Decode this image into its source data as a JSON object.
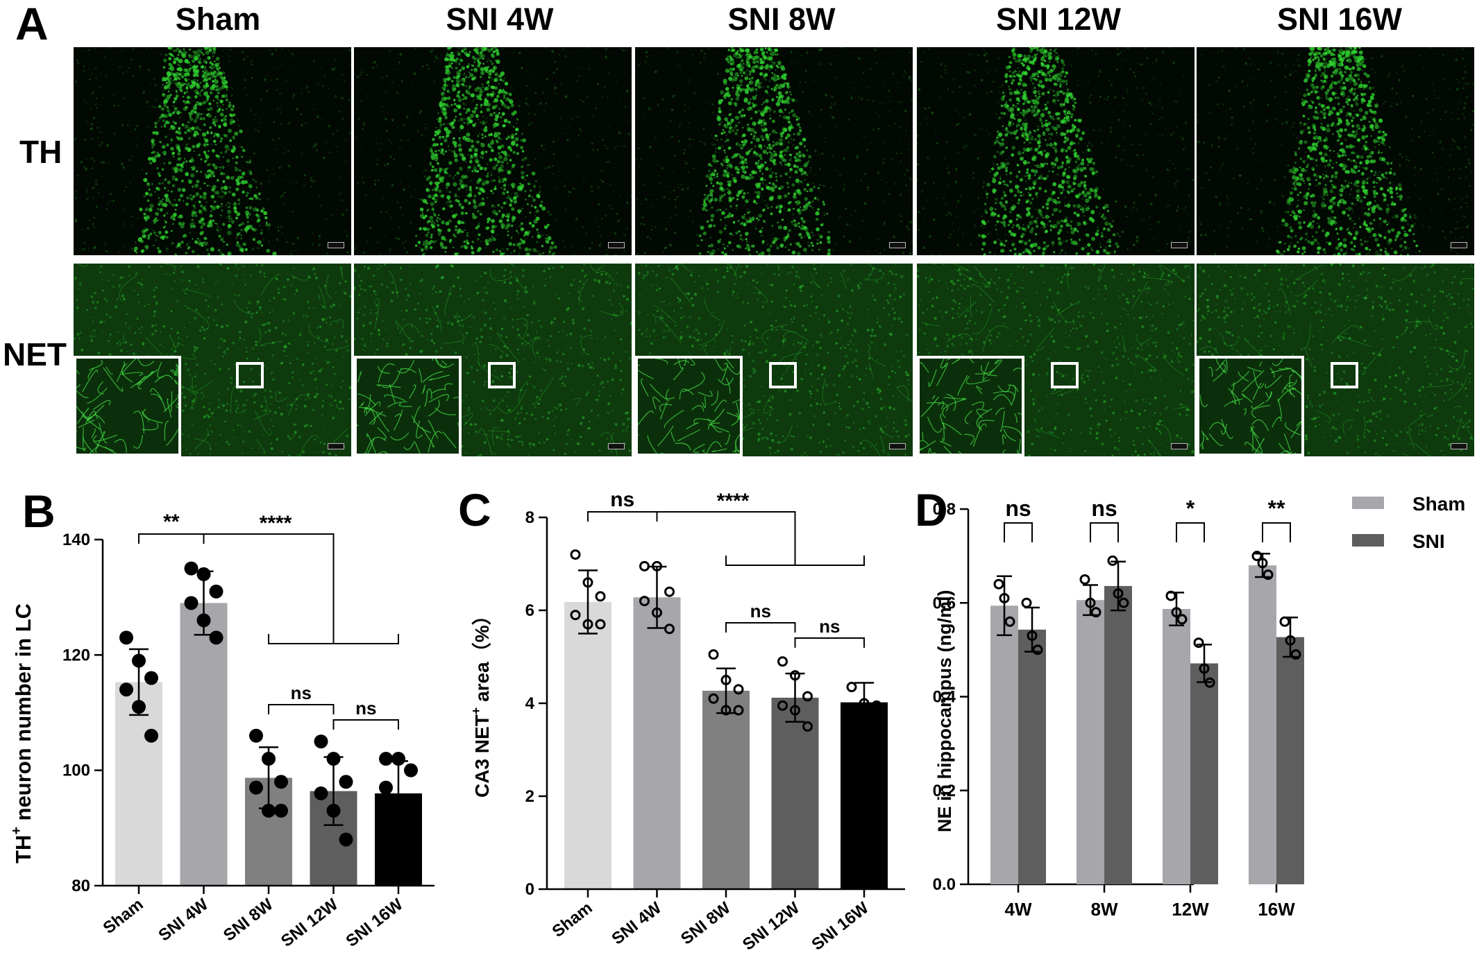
{
  "figure": {
    "panel_letters": {
      "a": "A",
      "b": "B",
      "c": "C",
      "d": "D"
    },
    "columns": [
      "Sham",
      "SNI 4W",
      "SNI 8W",
      "SNI 12W",
      "SNI 16W"
    ],
    "rows": [
      "TH",
      "NET"
    ],
    "colors": {
      "stain": "#2fd12f",
      "background": "#000000"
    }
  },
  "chart_data": [
    {
      "panel": "B",
      "type": "bar",
      "ylabel_main": "TH",
      "ylabel_sup": "+",
      "ylabel_rest": " neuron number in LC",
      "categories": [
        "Sham",
        "SNI 4W",
        "SNI 8W",
        "SNI 12W",
        "SNI 16W"
      ],
      "values": [
        115.3,
        129.0,
        98.7,
        96.4,
        96.0
      ],
      "errors": [
        5.7,
        5.5,
        5.3,
        5.9,
        5.6
      ],
      "points": [
        [
          123,
          119,
          116,
          114,
          111,
          106
        ],
        [
          135,
          134,
          131,
          129,
          126,
          123
        ],
        [
          106,
          102,
          98,
          97,
          93,
          93
        ],
        [
          105,
          102,
          98,
          96,
          93,
          88
        ],
        [
          102,
          102,
          100,
          97
        ]
      ],
      "colors": [
        "#d9d9d9",
        "#a6a6ab",
        "#808080",
        "#5e5e5e",
        "#000000"
      ],
      "ylim": [
        80,
        140
      ],
      "yticks": [
        80,
        100,
        120,
        140
      ],
      "ytick_labels": [
        "80",
        "100",
        "120",
        "140"
      ],
      "sig": {
        "pair": "**",
        "group": "****",
        "ns1": "ns",
        "ns2": "ns"
      }
    },
    {
      "panel": "C",
      "type": "bar",
      "ylabel_main": "CA3 NET",
      "ylabel_sup": "+",
      "ylabel_rest": " area（%）",
      "categories": [
        "Sham",
        "SNI 4W",
        "SNI 8W",
        "SNI 12W",
        "SNI 16W"
      ],
      "values": [
        6.18,
        6.28,
        4.27,
        4.12,
        4.02
      ],
      "errors": [
        0.68,
        0.66,
        0.48,
        0.52,
        0.42
      ],
      "points": [
        [
          7.2,
          6.6,
          6.3,
          5.9,
          5.7,
          5.7
        ],
        [
          6.95,
          6.95,
          6.4,
          6.2,
          5.95,
          5.6
        ],
        [
          5.05,
          4.5,
          4.3,
          4.1,
          3.85,
          3.85
        ],
        [
          4.9,
          4.6,
          4.15,
          3.95,
          3.85,
          3.5
        ],
        [
          4.35,
          4.0,
          3.95
        ]
      ],
      "colors": [
        "#d9d9d9",
        "#a6a6ab",
        "#808080",
        "#5e5e5e",
        "#000000"
      ],
      "ylim": [
        0,
        8
      ],
      "yticks": [
        0,
        2,
        4,
        6,
        8
      ],
      "ytick_labels": [
        "0",
        "2",
        "4",
        "6",
        "8"
      ],
      "sig": {
        "pair": "ns",
        "group": "****",
        "ns1": "ns",
        "ns2": "ns"
      }
    },
    {
      "panel": "D",
      "type": "bar",
      "ylabel": "NE in hippocampus (ng/ml)",
      "categories": [
        "4W",
        "8W",
        "12W",
        "16W"
      ],
      "series": [
        {
          "name": "Sham",
          "values": [
            0.594,
            0.606,
            0.587,
            0.68
          ],
          "errors": [
            0.063,
            0.032,
            0.035,
            0.025
          ],
          "points": [
            [
              0.64,
              0.61,
              0.56
            ],
            [
              0.65,
              0.6,
              0.58
            ],
            [
              0.615,
              0.58,
              0.565
            ],
            [
              0.7,
              0.685,
              0.66
            ]
          ]
        },
        {
          "name": "SNI",
          "values": [
            0.543,
            0.636,
            0.471,
            0.527
          ],
          "errors": [
            0.047,
            0.052,
            0.04,
            0.042
          ],
          "points": [
            [
              0.6,
              0.53,
              0.5
            ],
            [
              0.69,
              0.62,
              0.6
            ],
            [
              0.515,
              0.46,
              0.43
            ],
            [
              0.56,
              0.52,
              0.49
            ]
          ]
        }
      ],
      "colors": [
        "#a6a6ab",
        "#5e5e5e"
      ],
      "ylim": [
        0,
        0.8
      ],
      "yticks": [
        0,
        0.2,
        0.4,
        0.6,
        0.8
      ],
      "ytick_labels": [
        "0.0",
        "0.2",
        "0.4",
        "0.6",
        "0.8"
      ],
      "sig": [
        "ns",
        "ns",
        "*",
        "**"
      ],
      "legend": [
        "Sham",
        "SNI"
      ]
    }
  ]
}
